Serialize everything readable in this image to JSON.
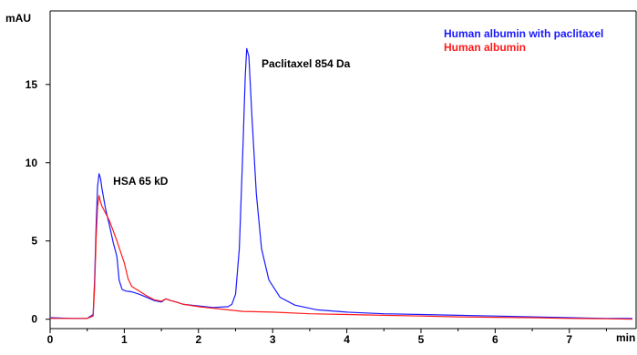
{
  "chart_data": {
    "type": "line",
    "xlabel": "min",
    "ylabel": "mAU",
    "xlim": [
      0,
      7.9
    ],
    "ylim": [
      -0.6,
      19.7
    ],
    "x_ticks": [
      0,
      1,
      2,
      3,
      4,
      5,
      6,
      7
    ],
    "y_ticks": [
      0,
      5,
      10,
      15
    ],
    "grid": false,
    "legend": "top-right",
    "series": [
      {
        "name": "Human albumin with paclitaxel",
        "color": "#1a1aff",
        "points": [
          [
            0,
            0.1
          ],
          [
            0.3,
            0.05
          ],
          [
            0.5,
            0.05
          ],
          [
            0.58,
            0.3
          ],
          [
            0.6,
            2.5
          ],
          [
            0.62,
            6.0
          ],
          [
            0.64,
            8.5
          ],
          [
            0.66,
            9.3
          ],
          [
            0.68,
            9.0
          ],
          [
            0.7,
            8.3
          ],
          [
            0.75,
            7.0
          ],
          [
            0.8,
            6.0
          ],
          [
            0.85,
            4.9
          ],
          [
            0.9,
            4.0
          ],
          [
            0.93,
            2.5
          ],
          [
            0.97,
            1.9
          ],
          [
            1.02,
            1.8
          ],
          [
            1.1,
            1.75
          ],
          [
            1.2,
            1.6
          ],
          [
            1.3,
            1.4
          ],
          [
            1.4,
            1.2
          ],
          [
            1.5,
            1.1
          ],
          [
            1.56,
            1.3
          ],
          [
            1.62,
            1.2
          ],
          [
            1.7,
            1.1
          ],
          [
            1.8,
            0.95
          ],
          [
            2.0,
            0.85
          ],
          [
            2.2,
            0.75
          ],
          [
            2.4,
            0.8
          ],
          [
            2.45,
            0.95
          ],
          [
            2.5,
            1.6
          ],
          [
            2.55,
            4.5
          ],
          [
            2.6,
            11.0
          ],
          [
            2.63,
            15.5
          ],
          [
            2.65,
            17.3
          ],
          [
            2.68,
            16.8
          ],
          [
            2.72,
            13.0
          ],
          [
            2.78,
            8.0
          ],
          [
            2.85,
            4.5
          ],
          [
            2.95,
            2.5
          ],
          [
            3.1,
            1.4
          ],
          [
            3.3,
            0.9
          ],
          [
            3.6,
            0.6
          ],
          [
            4.0,
            0.45
          ],
          [
            4.5,
            0.35
          ],
          [
            5.0,
            0.3
          ],
          [
            5.5,
            0.25
          ],
          [
            6.0,
            0.2
          ],
          [
            6.5,
            0.15
          ],
          [
            7.0,
            0.1
          ],
          [
            7.5,
            0.05
          ],
          [
            7.85,
            0.05
          ]
        ]
      },
      {
        "name": "Human albumin",
        "color": "#ff1a1a",
        "points": [
          [
            0,
            0.05
          ],
          [
            0.3,
            0.05
          ],
          [
            0.5,
            0.05
          ],
          [
            0.58,
            0.2
          ],
          [
            0.6,
            2.0
          ],
          [
            0.62,
            5.2
          ],
          [
            0.64,
            7.2
          ],
          [
            0.66,
            7.9
          ],
          [
            0.68,
            7.5
          ],
          [
            0.7,
            7.2
          ],
          [
            0.8,
            6.3
          ],
          [
            0.9,
            5.0
          ],
          [
            1.0,
            3.6
          ],
          [
            1.05,
            2.6
          ],
          [
            1.1,
            2.1
          ],
          [
            1.2,
            1.8
          ],
          [
            1.3,
            1.5
          ],
          [
            1.4,
            1.25
          ],
          [
            1.5,
            1.15
          ],
          [
            1.56,
            1.3
          ],
          [
            1.62,
            1.2
          ],
          [
            1.7,
            1.1
          ],
          [
            1.8,
            0.95
          ],
          [
            2.0,
            0.8
          ],
          [
            2.2,
            0.7
          ],
          [
            2.4,
            0.6
          ],
          [
            2.6,
            0.5
          ],
          [
            3.0,
            0.45
          ],
          [
            3.5,
            0.35
          ],
          [
            4.0,
            0.3
          ],
          [
            4.5,
            0.25
          ],
          [
            5.0,
            0.2
          ],
          [
            5.5,
            0.15
          ],
          [
            6.0,
            0.12
          ],
          [
            6.5,
            0.1
          ],
          [
            7.0,
            0.05
          ],
          [
            7.5,
            0.03
          ],
          [
            7.85,
            0.0
          ]
        ]
      }
    ],
    "annotations": [
      {
        "text": "HSA 65 kD",
        "x": 0.85,
        "y": 8.6
      },
      {
        "text": "Paclitaxel 854 Da",
        "x": 2.85,
        "y": 16.1
      }
    ]
  }
}
